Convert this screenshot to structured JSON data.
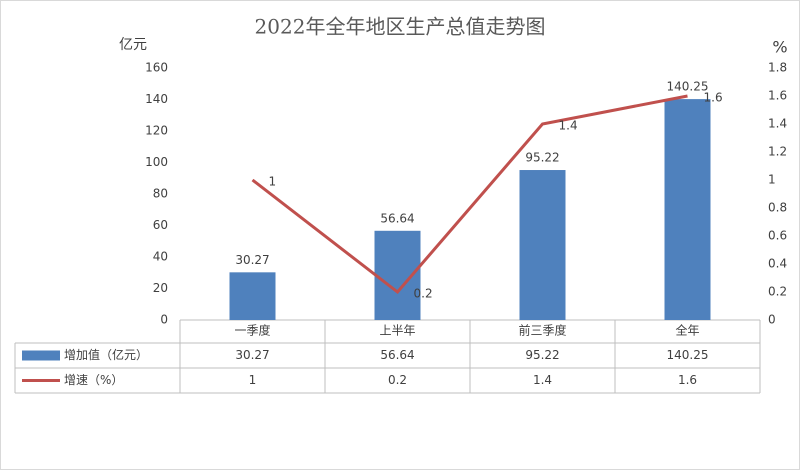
{
  "chart_data": {
    "type": "combo",
    "title": "2022年全年地区生产总值走势图",
    "y_label": "亿元",
    "y2_label": "%",
    "categories": [
      "一季度",
      "上半年",
      "前三季度",
      "全年"
    ],
    "series": [
      {
        "name": "增加值（亿元）",
        "type": "bar",
        "color": "#4f81bd",
        "values": [
          30.27,
          56.64,
          95.22,
          140.25
        ]
      },
      {
        "name": "增速（%）",
        "type": "line",
        "axis": "y2",
        "color": "#c0504d",
        "values": [
          1,
          0.2,
          1.4,
          1.6
        ]
      }
    ],
    "ylim": [
      0,
      160
    ],
    "yticks": [
      0,
      20,
      40,
      60,
      80,
      100,
      120,
      140,
      160
    ],
    "y2lim": [
      0,
      1.8
    ],
    "y2ticks": [
      0,
      0.2,
      0.4,
      0.6,
      0.8,
      1,
      1.2,
      1.4,
      1.6,
      1.8
    ],
    "grid": false,
    "data_table": true
  }
}
